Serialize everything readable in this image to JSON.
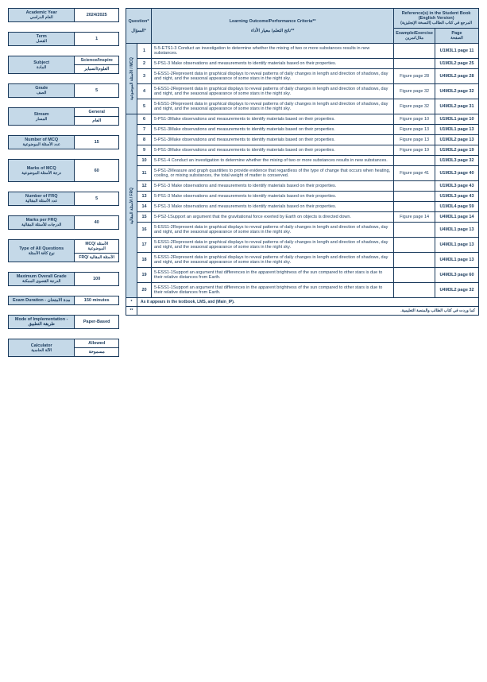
{
  "colors": {
    "header_bg": "#c5d9e8",
    "border": "#1a3a5c",
    "text": "#1a3a5c"
  },
  "info": {
    "academic_year": {
      "en": "Academic Year",
      "ar": "العام الدراسي",
      "value": "2024/2025"
    },
    "term": {
      "en": "Term",
      "ar": "الفصل",
      "value": "1"
    },
    "subject": {
      "en": "Subject",
      "ar": "المادة",
      "value": "Science/Inspire",
      "value_ar": "العلوم/انسباير"
    },
    "grade": {
      "en": "Grade",
      "ar": "الصف",
      "value": "5"
    },
    "stream": {
      "en": "Stream",
      "ar": "المسار",
      "value": "General",
      "value_ar": "العام"
    },
    "num_mcq": {
      "en": "Number of MCQ",
      "ar": "عدد الأسئلة الموضوعية",
      "value": "15"
    },
    "marks_mcq": {
      "en": "Marks of MCQ",
      "ar": "درجة الأسئلة الموضوعية",
      "value": "60"
    },
    "num_frq": {
      "en": "Number of FRQ",
      "ar": "عدد الأسئلة المقالية",
      "value": "5"
    },
    "marks_frq": {
      "en": "Marks per FRQ",
      "ar": "الدرجات للأسئلة المقالية",
      "value": "40"
    },
    "type_q": {
      "en": "Type of All Questions",
      "ar": "نوع كافة الأسئلة",
      "value": "MCQ/ الأسئلة الموضوعية",
      "value2": "FRQ/ الأسئلة المقالية"
    },
    "max_grade": {
      "en": "Maximum Overall Grade",
      "ar": "الدرجة القصوى الممكنة",
      "value": "100"
    },
    "duration": {
      "en": "Exam Duration - مدة الامتحان",
      "ar": "",
      "value": "150 minutes"
    },
    "mode": {
      "en": "Mode of Implementation - طريقة التطبيق",
      "ar": "",
      "value": "Paper-Based"
    },
    "calculator": {
      "en": "Calculator",
      "ar": "الآلة الحاسبة",
      "value": "Allowed",
      "value_ar": "مسموحة"
    }
  },
  "headers": {
    "question": "Question*",
    "question_ar": "السؤال*",
    "outcome": "Learning Outcome/Performance Criteria**",
    "outcome_ar": "ناتج التعلم/ معيار الأداء**",
    "ref_title": "Reference(s) in the Student Book (English Version)",
    "ref_title_ar": "المرجع في كتاب الطالب (النسخة الإنجليزية)",
    "example": "Example/Exercise",
    "example_ar": "مثال/تمرين",
    "page": "Page",
    "page_ar": "الصفحة"
  },
  "section1_label": "الأسئلة الموضوعية / MCQ",
  "section2_label": "الأسئلة المقالية / FRQ",
  "rows": [
    {
      "n": "1",
      "text": "5-5-ETS1-3 Conduct an investigation to determine whether the mixing of two or more substances results in new substances.",
      "ref1": "",
      "ref2": "U1M3L1 page 11"
    },
    {
      "n": "2",
      "text": "5-PS1-3 Make observations and measurements to identify materials based on their properties.",
      "ref1": "",
      "ref2": "U1M3L2 page 25"
    },
    {
      "n": "3",
      "text": "5-ESS1-2Represent data in graphical displays to reveal patterns of daily changes in length and direction of shadows, day and night, and the seasonal appearance of some stars in the night sky.",
      "ref1": "Figure page 28",
      "ref2": "U4M3L2 page 28"
    },
    {
      "n": "4",
      "text": "5-ESS1-2Represent data in graphical displays to reveal patterns of daily changes in length and direction of shadows, day and night, and the seasonal appearance of some stars in the night sky.",
      "ref1": "Figure page 32",
      "ref2": "U4M3L2 page 32"
    },
    {
      "n": "5",
      "text": "5-ESS1-2Represent data in graphical displays to reveal patterns of daily changes in length and direction of shadows, day and night, and the seasonal appearance of some stars in the night sky.",
      "ref1": "Figure page 32",
      "ref2": "U4M3L2 page 31"
    },
    {
      "n": "6",
      "text": "5-PS1-3Make observations and measurements to identify materials based on their properties.",
      "ref1": "Figure page 10",
      "ref2": "U1M3L1 page 10"
    },
    {
      "n": "7",
      "text": "5-PS1-3Make observations and measurements to identify materials based on their properties.",
      "ref1": "Figure page 13",
      "ref2": "U1M3L1 page 13"
    },
    {
      "n": "8",
      "text": "5-PS1-3Make observations and measurements to identify materials based on their properties.",
      "ref1": "Figure page 13",
      "ref2": "U1M3L2 page 13"
    },
    {
      "n": "9",
      "text": "5-PS1-3Make observations and measurements to identify materials based on their properties.",
      "ref1": "Figure page 19",
      "ref2": "U1M3L2 page 19"
    },
    {
      "n": "10",
      "text": "5-PS1-4 Conduct an investigation to determine whether the mixing of two or more substances results in new substances.",
      "ref1": "",
      "ref2": "U1M3L3 page 32"
    },
    {
      "n": "11",
      "text": "5-PS1-2Measure and graph quantities to provide evidence that regardless of the type of change that occurs when heating, cooling, or mixing substances, the total weight of matter is conserved.",
      "ref1": "Figure page 41",
      "ref2": "U1M3L3 page 40"
    },
    {
      "n": "12",
      "text": "5-PS1-3 Make observations and measurements to identify materials based on their properties.",
      "ref1": "",
      "ref2": "U1M3L3 page 43"
    },
    {
      "n": "13",
      "text": "5-PS1-3 Make observations and measurements to identify materials based on their properties.",
      "ref1": "",
      "ref2": "U1M3L3 page 43"
    },
    {
      "n": "14",
      "text": "5-PS1-3 Make observations and measurements to identify materials based on their properties.",
      "ref1": "",
      "ref2": "U1M3L4 page 59"
    },
    {
      "n": "15",
      "text": "5-PS2-1Support an argument that the gravitational force exerted by Earth on objects is directed down.",
      "ref1": "Figure page 14",
      "ref2": "U4M3L1 page 14"
    },
    {
      "n": "16",
      "text": "5-ESS1-2Represent data in graphical displays to reveal patterns of daily changes in length and direction of shadows, day and night, and the seasonal appearance of some stars in the night sky.",
      "ref1": "",
      "ref2": "U4M3L1 page 13"
    },
    {
      "n": "17",
      "text": "5-ESS1-2Represent data in graphical displays to reveal patterns of daily changes in length and direction of shadows, day and night, and the seasonal appearance of some stars in the night sky.",
      "ref1": "",
      "ref2": "U4M3L1 page 13"
    },
    {
      "n": "18",
      "text": "5-ESS1-2Represent data in graphical displays to reveal patterns of daily changes in length and direction of shadows, day and night, and the seasonal appearance of some stars in the night sky.",
      "ref1": "",
      "ref2": "U4M3L1 page 13"
    },
    {
      "n": "19",
      "text": "5-ESS1-1Support an argument that differences in the apparent brightness of the sun compared to other stars is due to their relative distances from Earth.",
      "ref1": "",
      "ref2": "U4M3L3 page 60"
    },
    {
      "n": "20",
      "text": "5-ESS1-1Support an argument that differences in the apparent brightness of the sun compared to other stars is due to their relative distances from Earth.",
      "ref1": "",
      "ref2": "U4M3L2 page 32"
    }
  ],
  "footer": {
    "left_marker": "*",
    "left_text": "As it appears in the textbook, LMS, and (Main_IP).",
    "right_marker": "**",
    "right_text": "كما وردت في كتاب الطالب والمنصة التعليمية."
  }
}
